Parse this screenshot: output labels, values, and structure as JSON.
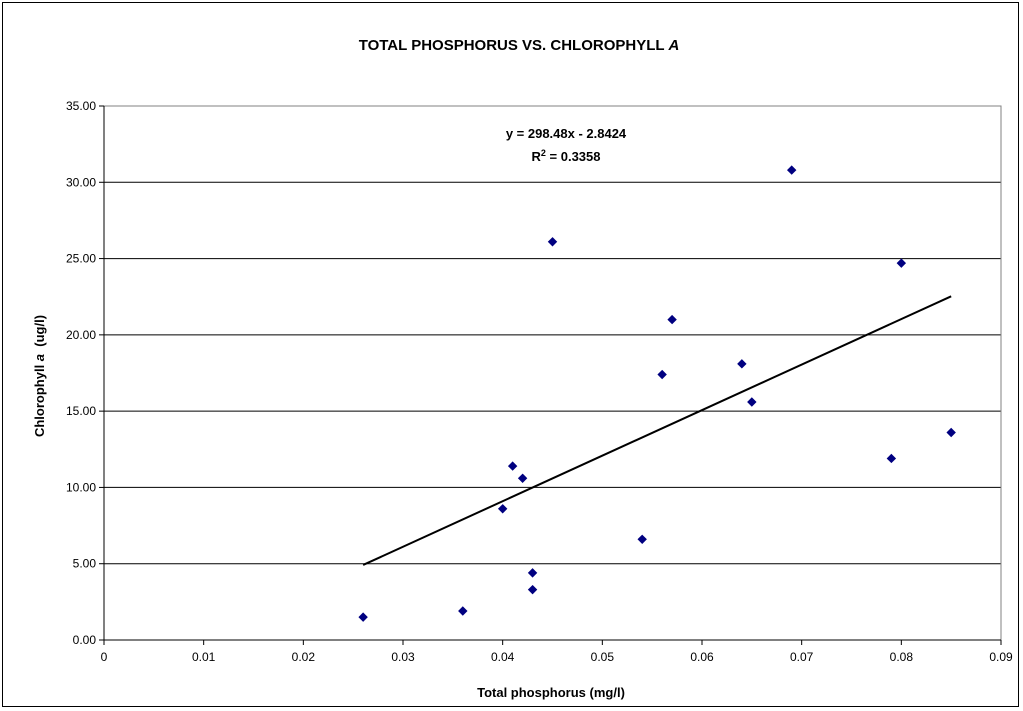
{
  "chart_data": {
    "type": "scatter",
    "title": "TOTAL PHOSPHORUS VS. CHLOROPHYLL A",
    "title_main": "TOTAL PHOSPHORUS VS. CHLOROPHYLL ",
    "title_italic": "A",
    "xlabel": "Total phosphorus (mg/l)",
    "ylabel_prefix": "Chlorophyll ",
    "ylabel_italic": "a",
    "ylabel_suffix": "  (ug/l)",
    "xlim": [
      0,
      0.09
    ],
    "ylim": [
      0,
      35
    ],
    "x_ticks": [
      "0",
      "0.01",
      "0.02",
      "0.03",
      "0.04",
      "0.05",
      "0.06",
      "0.07",
      "0.08",
      "0.09"
    ],
    "y_ticks": [
      "0.00",
      "5.00",
      "10.00",
      "15.00",
      "20.00",
      "25.00",
      "30.00",
      "35.00"
    ],
    "grid": "horizontal",
    "series": [
      {
        "color": "#000080",
        "marker": "diamond",
        "points": [
          {
            "x": 0.026,
            "y": 1.5
          },
          {
            "x": 0.036,
            "y": 1.9
          },
          {
            "x": 0.04,
            "y": 8.6
          },
          {
            "x": 0.041,
            "y": 11.4
          },
          {
            "x": 0.042,
            "y": 10.6
          },
          {
            "x": 0.043,
            "y": 4.4
          },
          {
            "x": 0.043,
            "y": 3.3
          },
          {
            "x": 0.045,
            "y": 26.1
          },
          {
            "x": 0.054,
            "y": 6.6
          },
          {
            "x": 0.056,
            "y": 17.4
          },
          {
            "x": 0.057,
            "y": 21.0
          },
          {
            "x": 0.064,
            "y": 18.1
          },
          {
            "x": 0.065,
            "y": 15.6
          },
          {
            "x": 0.069,
            "y": 30.8
          },
          {
            "x": 0.079,
            "y": 11.9
          },
          {
            "x": 0.08,
            "y": 24.7
          },
          {
            "x": 0.085,
            "y": 13.6
          }
        ]
      }
    ],
    "trendline": {
      "slope": 298.48,
      "intercept": -2.8424,
      "x_range": [
        0.026,
        0.085
      ],
      "equation": "y = 298.48x - 2.8424",
      "r2_prefix": "R",
      "r2_sup": "2",
      "r2_value": " = 0.3358"
    }
  }
}
